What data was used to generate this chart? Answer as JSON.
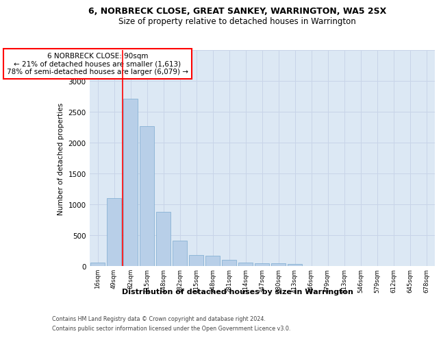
{
  "title_line1": "6, NORBRECK CLOSE, GREAT SANKEY, WARRINGTON, WA5 2SX",
  "title_line2": "Size of property relative to detached houses in Warrington",
  "xlabel": "Distribution of detached houses by size in Warrington",
  "ylabel": "Number of detached properties",
  "categories": [
    "16sqm",
    "49sqm",
    "82sqm",
    "115sqm",
    "148sqm",
    "182sqm",
    "215sqm",
    "248sqm",
    "281sqm",
    "314sqm",
    "347sqm",
    "380sqm",
    "413sqm",
    "446sqm",
    "479sqm",
    "513sqm",
    "546sqm",
    "579sqm",
    "612sqm",
    "645sqm",
    "678sqm"
  ],
  "values": [
    55,
    1100,
    2710,
    2270,
    880,
    415,
    175,
    165,
    95,
    60,
    50,
    40,
    30,
    5,
    5,
    5,
    5,
    5,
    5,
    5,
    5
  ],
  "bar_color": "#b8cfe8",
  "bar_edge_color": "#7aaad0",
  "grid_color": "#c8d4e8",
  "background_color": "#dce8f4",
  "red_line_index": 2,
  "annotation_title": "6 NORBRECK CLOSE: 90sqm",
  "annotation_line1": "← 21% of detached houses are smaller (1,613)",
  "annotation_line2": "78% of semi-detached houses are larger (6,079) →",
  "ylim": [
    0,
    3500
  ],
  "yticks": [
    0,
    500,
    1000,
    1500,
    2000,
    2500,
    3000,
    3500
  ],
  "footnote1": "Contains HM Land Registry data © Crown copyright and database right 2024.",
  "footnote2": "Contains public sector information licensed under the Open Government Licence v3.0."
}
